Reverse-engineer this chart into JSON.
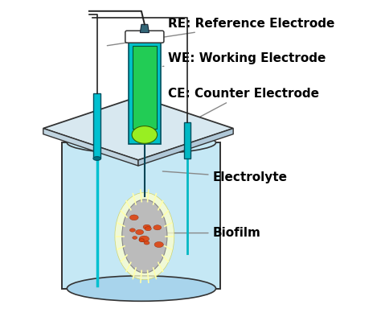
{
  "title": "",
  "bg_color": "#ffffff",
  "labels": {
    "RE": "RE: Reference Electrode",
    "WE": "WE: Working Electrode",
    "CE": "CE: Counter Electrode",
    "electrolyte": "Electrolyte",
    "biofilm": "Biofilm"
  },
  "colors": {
    "beaker_border": "#333333",
    "liquid": "#c5e8f5",
    "liquid_dark": "#a8d4ec",
    "lid_top": "#d8e8f0",
    "lid_front": "#c0d4e0",
    "lid_right": "#b0c8d8",
    "we_outer": "#00c0c8",
    "we_inner": "#22cc55",
    "we_tip": "#99ee22",
    "we_cap": "#ffffff",
    "re_color": "#00c0d0",
    "ce_color": "#00b8c4",
    "wire": "#222222",
    "annotation_line": "#888888",
    "text": "#000000",
    "biofilm_halo": "#ffffcc",
    "biofilm_gray": "#bbbbbb",
    "biofilm_orange": "#dd4411",
    "biofilm_spike": "#ffffaa"
  },
  "font_size": 11,
  "font_weight": "bold"
}
